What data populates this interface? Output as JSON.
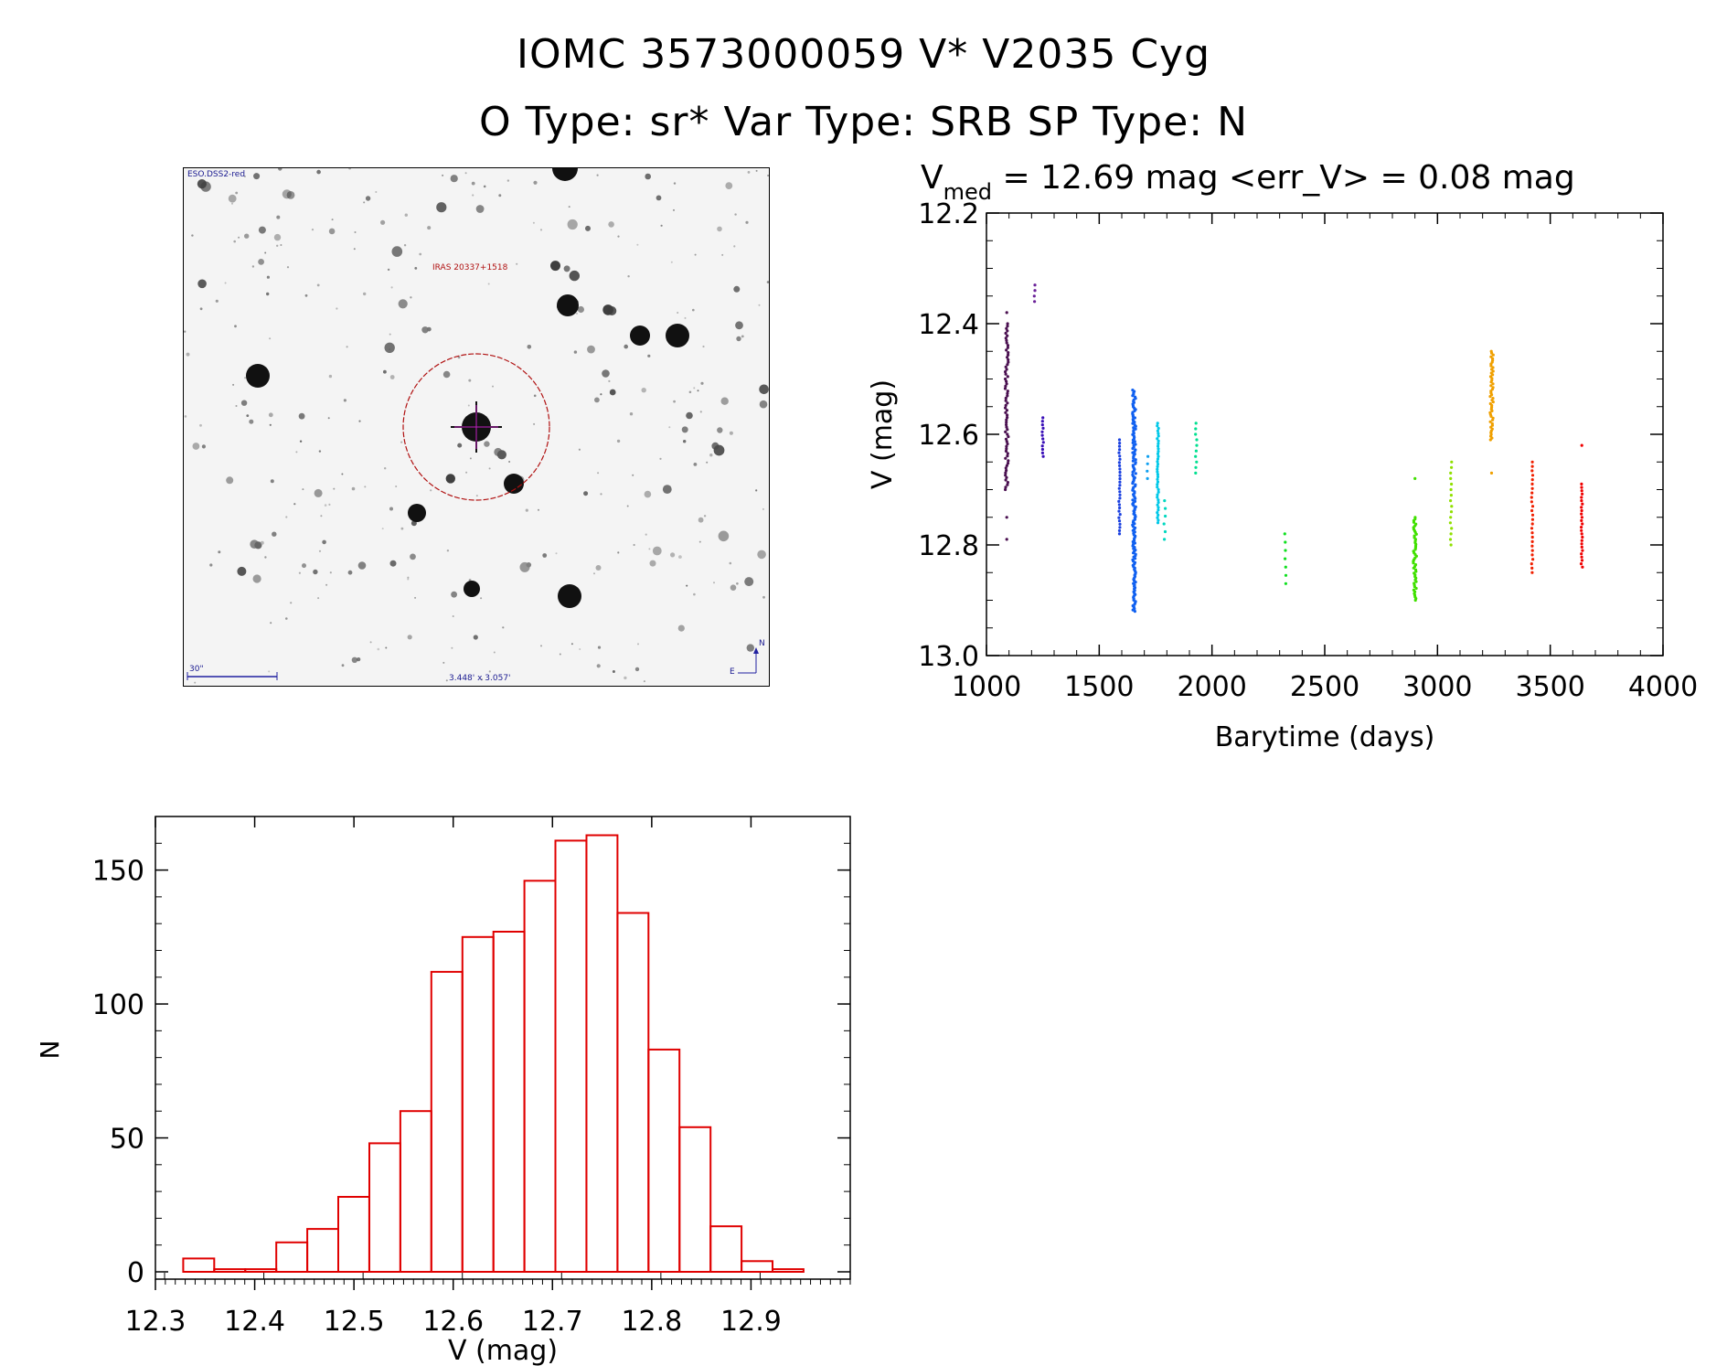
{
  "header": {
    "line1": "IOMC 3573000059    V* V2035 Cyg",
    "line2": "O Type: sr*   Var Type: SRB   SP Type: N"
  },
  "finder": {
    "survey": "ESO.DSS2-red",
    "source": "IRAS 20337+1518",
    "scale": "30\"",
    "fov": "3.448' x 3.057'",
    "north": "N",
    "east": "E"
  },
  "chart_data": [
    {
      "type": "scatter",
      "title_main": "V",
      "title_sub": "med",
      "title_rest": " = 12.69 mag <err_V> = 0.08 mag",
      "xlabel": "Barytime (days)",
      "ylabel": "V (mag)",
      "xlim": [
        1000,
        4000
      ],
      "ylim": [
        13.0,
        12.2
      ],
      "y_inverted": true,
      "xticks": [
        1000,
        1500,
        2000,
        2500,
        3000,
        3500,
        4000
      ],
      "yticks": [
        "12.2",
        "12.4",
        "12.6",
        "12.8",
        "13.0"
      ],
      "grid": false,
      "clusters": [
        {
          "x": 1090,
          "ymin": 12.4,
          "ymax": 12.7,
          "outliers": [
            12.38,
            12.75,
            12.79
          ],
          "n": 70,
          "color": "#4a1050"
        },
        {
          "x": 1215,
          "ymin": 12.33,
          "ymax": 12.36,
          "n": 4,
          "color": "#6a2098"
        },
        {
          "x": 1250,
          "ymin": 12.57,
          "ymax": 12.64,
          "n": 12,
          "color": "#3a10b8"
        },
        {
          "x": 1590,
          "ymin": 12.61,
          "ymax": 12.78,
          "n": 30,
          "color": "#1a40e0"
        },
        {
          "x": 1655,
          "ymin": 12.52,
          "ymax": 12.92,
          "n": 160,
          "color": "#1060f0"
        },
        {
          "x": 1715,
          "ymin": 12.64,
          "ymax": 12.68,
          "n": 4,
          "color": "#10a0f0"
        },
        {
          "x": 1760,
          "ymin": 12.58,
          "ymax": 12.76,
          "n": 40,
          "color": "#00c8e8"
        },
        {
          "x": 1790,
          "ymin": 12.72,
          "ymax": 12.79,
          "n": 6,
          "color": "#00d8c0"
        },
        {
          "x": 1930,
          "ymin": 12.58,
          "ymax": 12.67,
          "n": 10,
          "color": "#00e090"
        },
        {
          "x": 2325,
          "ymin": 12.78,
          "ymax": 12.87,
          "n": 7,
          "color": "#10e020"
        },
        {
          "x": 2900,
          "ymin": 12.75,
          "ymax": 12.9,
          "outliers": [
            12.68
          ],
          "n": 50,
          "color": "#40e000"
        },
        {
          "x": 3060,
          "ymin": 12.65,
          "ymax": 12.8,
          "n": 16,
          "color": "#90e000"
        },
        {
          "x": 3240,
          "ymin": 12.45,
          "ymax": 12.61,
          "outliers": [
            12.67
          ],
          "n": 50,
          "color": "#f0a000"
        },
        {
          "x": 3420,
          "ymin": 12.65,
          "ymax": 12.85,
          "n": 26,
          "color": "#f02000"
        },
        {
          "x": 3640,
          "ymin": 12.69,
          "ymax": 12.84,
          "outliers": [
            12.62
          ],
          "n": 26,
          "color": "#f00000"
        }
      ]
    },
    {
      "type": "bar",
      "subtype": "histogram",
      "xlabel": "V (mag)",
      "ylabel": "N",
      "xlim": [
        12.3,
        13.0
      ],
      "ylim": [
        0,
        170
      ],
      "xticks": [
        "12.3",
        "12.4",
        "12.5",
        "12.6",
        "12.7",
        "12.8",
        "12.9"
      ],
      "yticks": [
        "0",
        "50",
        "100",
        "150"
      ],
      "bin_width": 0.03125,
      "bin_start": 12.328,
      "values": [
        5,
        1,
        1,
        11,
        16,
        28,
        48,
        60,
        112,
        125,
        127,
        146,
        161,
        163,
        134,
        83,
        54,
        17,
        4,
        1
      ],
      "color": "#e00000"
    }
  ]
}
